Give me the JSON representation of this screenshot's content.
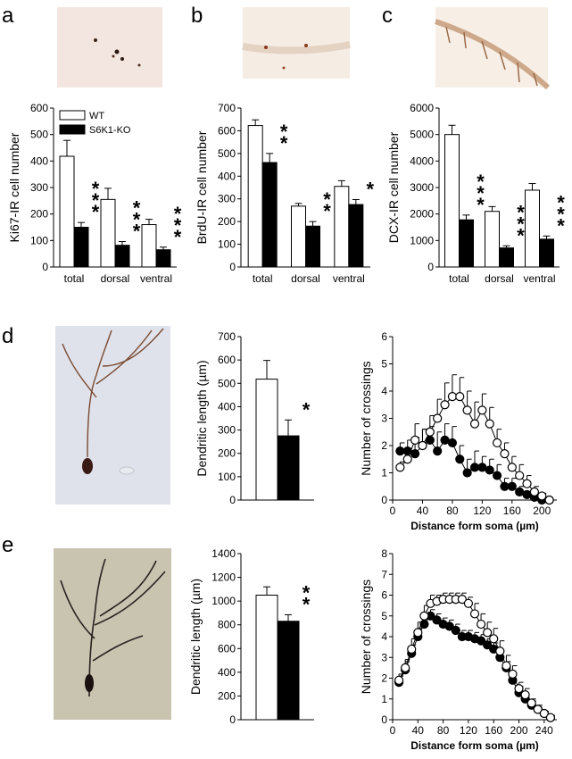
{
  "panels": {
    "a": {
      "letter": "a"
    },
    "b": {
      "letter": "b"
    },
    "c": {
      "letter": "c"
    },
    "d": {
      "letter": "d"
    },
    "e": {
      "letter": "e"
    }
  },
  "legend": {
    "wt": "WT",
    "ko": "S6K1-KO"
  },
  "colors": {
    "wt": "#ffffff",
    "ko": "#000000",
    "axis": "#000000"
  },
  "chart_data": [
    {
      "id": "a",
      "type": "bar",
      "ylabel": "Ki67-IR cell number",
      "ylim": [
        0,
        600
      ],
      "yticks": [
        0,
        100,
        200,
        300,
        400,
        500,
        600
      ],
      "categories": [
        "total",
        "dorsal",
        "ventral"
      ],
      "series": [
        {
          "name": "WT",
          "values": [
            418,
            255,
            160
          ],
          "errors": [
            60,
            42,
            20
          ]
        },
        {
          "name": "S6K1-KO",
          "values": [
            150,
            82,
            65
          ],
          "errors": [
            18,
            14,
            10
          ]
        }
      ],
      "significance": [
        "***",
        "***",
        "***"
      ],
      "legend": "top-left"
    },
    {
      "id": "b",
      "type": "bar",
      "ylabel": "BrdU-IR cell number",
      "ylim": [
        0,
        700
      ],
      "yticks": [
        0,
        100,
        200,
        300,
        400,
        500,
        600,
        700
      ],
      "categories": [
        "total",
        "dorsal",
        "ventral"
      ],
      "series": [
        {
          "name": "WT",
          "values": [
            623,
            268,
            355
          ],
          "errors": [
            25,
            12,
            25
          ]
        },
        {
          "name": "S6K1-KO",
          "values": [
            460,
            180,
            275
          ],
          "errors": [
            40,
            20,
            22
          ]
        }
      ],
      "significance": [
        "**",
        "**",
        "*"
      ]
    },
    {
      "id": "c",
      "type": "bar",
      "ylabel": "DCX-IR cell number",
      "ylim": [
        0,
        6000
      ],
      "yticks": [
        0,
        1000,
        2000,
        3000,
        4000,
        5000,
        6000
      ],
      "categories": [
        "total",
        "dorsal",
        "ventral"
      ],
      "series": [
        {
          "name": "WT",
          "values": [
            5000,
            2100,
            2900
          ],
          "errors": [
            350,
            180,
            250
          ]
        },
        {
          "name": "S6K1-KO",
          "values": [
            1780,
            720,
            1050
          ],
          "errors": [
            180,
            80,
            120
          ]
        }
      ],
      "significance": [
        "***",
        "***",
        "***"
      ]
    },
    {
      "id": "d_bar",
      "type": "bar",
      "ylabel": "Dendritic length (µm)",
      "ylim": [
        0,
        700
      ],
      "yticks": [
        0,
        100,
        200,
        300,
        400,
        500,
        600,
        700
      ],
      "categories": [
        ""
      ],
      "series": [
        {
          "name": "WT",
          "values": [
            518
          ],
          "errors": [
            80
          ]
        },
        {
          "name": "S6K1-KO",
          "values": [
            275
          ],
          "errors": [
            68
          ]
        }
      ],
      "significance": [
        "*"
      ]
    },
    {
      "id": "d_line",
      "type": "line",
      "xlabel": "Distance form soma (µm)",
      "ylabel": "Number of crossings",
      "xlim": [
        0,
        220
      ],
      "xticks": [
        0,
        40,
        80,
        120,
        160,
        200
      ],
      "ylim": [
        0,
        6
      ],
      "yticks": [
        0,
        1,
        2,
        3,
        4,
        5,
        6
      ],
      "x": [
        10,
        20,
        30,
        40,
        50,
        60,
        70,
        80,
        90,
        100,
        110,
        120,
        130,
        140,
        150,
        160,
        170,
        180,
        190,
        200,
        210
      ],
      "series": [
        {
          "name": "WT",
          "marker": "open",
          "values": [
            1.2,
            1.5,
            2.2,
            2.0,
            2.5,
            3.0,
            3.5,
            3.8,
            3.8,
            3.3,
            2.8,
            3.3,
            2.8,
            2.1,
            1.7,
            1.2,
            0.9,
            0.6,
            0.3,
            0.15,
            0.0
          ],
          "errors": [
            0.2,
            0.4,
            0.6,
            0.6,
            0.6,
            0.7,
            0.8,
            0.8,
            0.7,
            0.7,
            0.8,
            0.6,
            0.6,
            0.5,
            0.4,
            0.4,
            0.4,
            0.3,
            0.2,
            0.1,
            0.0
          ]
        },
        {
          "name": "S6K1-KO",
          "marker": "filled",
          "values": [
            1.8,
            1.8,
            1.7,
            2.0,
            2.2,
            1.8,
            2.2,
            2.1,
            1.5,
            1.0,
            1.2,
            1.2,
            1.1,
            0.9,
            0.5,
            0.5,
            0.3,
            0.2,
            0.1,
            0.0,
            0.0
          ],
          "errors": [
            0.3,
            0.4,
            0.6,
            0.6,
            0.5,
            0.7,
            0.6,
            0.6,
            0.5,
            0.5,
            0.6,
            0.4,
            0.4,
            0.4,
            0.3,
            0.3,
            0.2,
            0.1,
            0.1,
            0.0,
            0.0
          ]
        }
      ]
    },
    {
      "id": "e_bar",
      "type": "bar",
      "ylabel": "Dendritic length (µm)",
      "ylim": [
        0,
        1400
      ],
      "yticks": [
        0,
        200,
        400,
        600,
        800,
        1000,
        1200,
        1400
      ],
      "categories": [
        ""
      ],
      "series": [
        {
          "name": "WT",
          "values": [
            1050
          ],
          "errors": [
            70
          ]
        },
        {
          "name": "S6K1-KO",
          "values": [
            830
          ],
          "errors": [
            55
          ]
        }
      ],
      "significance": [
        "**"
      ]
    },
    {
      "id": "e_line",
      "type": "line",
      "xlabel": "Distance form soma (µm)",
      "ylabel": "Number of crossings",
      "xlim": [
        0,
        260
      ],
      "xticks": [
        0,
        40,
        80,
        120,
        160,
        200,
        240
      ],
      "ylim": [
        0,
        8
      ],
      "yticks": [
        0,
        1,
        2,
        3,
        4,
        5,
        6,
        7,
        8
      ],
      "x": [
        10,
        20,
        30,
        40,
        50,
        60,
        70,
        80,
        90,
        100,
        110,
        120,
        130,
        140,
        150,
        160,
        170,
        180,
        190,
        200,
        210,
        220,
        230,
        240,
        250
      ],
      "series": [
        {
          "name": "WT",
          "marker": "open",
          "values": [
            1.9,
            2.5,
            3.4,
            4.2,
            5.0,
            5.6,
            5.7,
            5.8,
            5.8,
            5.8,
            5.8,
            5.6,
            5.1,
            4.6,
            4.2,
            3.9,
            3.3,
            2.6,
            2.2,
            1.5,
            1.2,
            0.8,
            0.5,
            0.3,
            0.1
          ],
          "errors": [
            0.3,
            0.4,
            0.5,
            0.5,
            0.5,
            0.4,
            0.3,
            0.3,
            0.3,
            0.3,
            0.3,
            0.3,
            0.5,
            0.5,
            0.5,
            0.5,
            0.5,
            0.5,
            0.4,
            0.3,
            0.3,
            0.2,
            0.2,
            0.1,
            0.1
          ]
        },
        {
          "name": "S6K1-KO",
          "marker": "filled",
          "values": [
            1.8,
            2.4,
            3.2,
            4.0,
            4.6,
            5.0,
            4.8,
            4.6,
            4.5,
            4.3,
            4.0,
            4.0,
            3.9,
            3.8,
            3.6,
            3.4,
            3.0,
            2.5,
            1.9,
            1.3,
            1.0,
            0.7,
            0.5,
            0.3,
            0.1
          ],
          "errors": [
            0.3,
            0.4,
            0.4,
            0.4,
            0.4,
            0.3,
            0.3,
            0.3,
            0.3,
            0.3,
            0.3,
            0.3,
            0.3,
            0.3,
            0.3,
            0.3,
            0.3,
            0.3,
            0.3,
            0.3,
            0.2,
            0.2,
            0.1,
            0.1,
            0.1
          ]
        }
      ]
    }
  ]
}
